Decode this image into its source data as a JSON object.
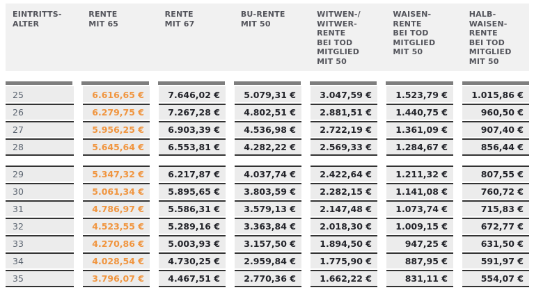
{
  "colors": {
    "highlight_value": "#f0953f",
    "header_text": "#54555c",
    "value_text": "#23242a",
    "age_text": "#5b6470",
    "row_background": "#ececec",
    "header_background": "#f1f1f1",
    "thick_bar": "#7e7e7e",
    "thin_border": "#323232"
  },
  "table": {
    "columns": [
      "EINTRITTS-\nALTER",
      "RENTE\nMIT 65",
      "RENTE\nMIT 67",
      "BU-RENTE\nMIT 50",
      "WITWEN-/\nWITWER-\nRENTE\nBEI TOD\nMITGLIED\nMIT 50",
      "WAISEN-\nRENTE\nBEI TOD\nMITGLIED\nMIT 50",
      "HALB-\nWAISEN-\nRENTE\nBEI TOD\nMITGLIED\nMIT 50"
    ],
    "highlight_column_index": 1,
    "groups": [
      {
        "rows": [
          {
            "age": "25",
            "values": [
              "6.616,65 €",
              "7.646,02 €",
              "5.079,31 €",
              "3.047,59 €",
              "1.523,79 €",
              "1.015,86 €"
            ]
          },
          {
            "age": "26",
            "values": [
              "6.279,75 €",
              "7.267,28 €",
              "4.802,51 €",
              "2.881,51 €",
              "1.440,75 €",
              "960,50 €"
            ]
          },
          {
            "age": "27",
            "values": [
              "5.956,25 €",
              "6.903,39 €",
              "4.536,98 €",
              "2.722,19 €",
              "1.361,09 €",
              "907,40 €"
            ]
          },
          {
            "age": "28",
            "values": [
              "5.645,64 €",
              "6.553,81 €",
              "4.282,22 €",
              "2.569,33 €",
              "1.284,67 €",
              "856,44 €"
            ]
          }
        ]
      },
      {
        "rows": [
          {
            "age": "29",
            "values": [
              "5.347,32 €",
              "6.217,87 €",
              "4.037,74 €",
              "2.422,64 €",
              "1.211,32 €",
              "807,55 €"
            ]
          },
          {
            "age": "30",
            "values": [
              "5.061,34 €",
              "5.895,65 €",
              "3.803,59 €",
              "2.282,15 €",
              "1.141,08 €",
              "760,72 €"
            ]
          },
          {
            "age": "31",
            "values": [
              "4.786,97 €",
              "5.586,31 €",
              "3.579,13 €",
              "2.147,48 €",
              "1.073,74 €",
              "715,83 €"
            ]
          },
          {
            "age": "32",
            "values": [
              "4.523,55 €",
              "5.289,16 €",
              "3.363,84 €",
              "2.018,30 €",
              "1.009,15 €",
              "672,77 €"
            ]
          },
          {
            "age": "33",
            "values": [
              "4.270,86 €",
              "5.003,93 €",
              "3.157,50 €",
              "1.894,50 €",
              "947,25 €",
              "631,50 €"
            ]
          },
          {
            "age": "34",
            "values": [
              "4.028,54 €",
              "4.730,25 €",
              "2.959,84 €",
              "1.775,90 €",
              "887,95 €",
              "591,97 €"
            ]
          },
          {
            "age": "35",
            "values": [
              "3.796,07 €",
              "4.467,51 €",
              "2.770,36 €",
              "1.662,22 €",
              "831,11 €",
              "554,07 €"
            ]
          }
        ]
      }
    ]
  }
}
